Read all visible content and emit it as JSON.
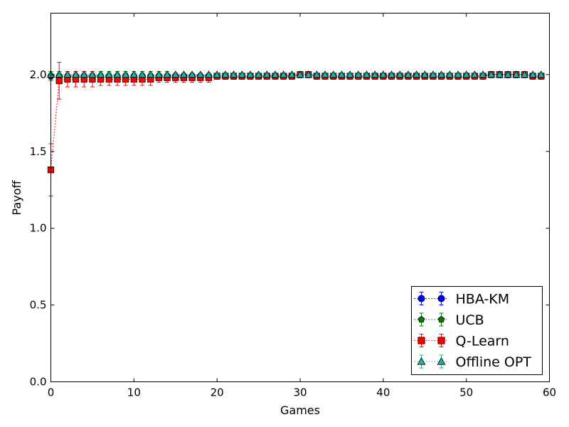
{
  "chart_data": {
    "type": "line",
    "xlabel": "Games",
    "ylabel": "Payoff",
    "xlim": [
      0,
      60
    ],
    "ylim": [
      0.0,
      2.4
    ],
    "xticks": [
      0,
      10,
      20,
      30,
      40,
      50,
      60
    ],
    "yticks": [
      0.0,
      0.5,
      1.0,
      1.5,
      2.0
    ],
    "xtick_labels": [
      "0",
      "10",
      "20",
      "30",
      "40",
      "50",
      "60"
    ],
    "ytick_labels": [
      "0.0",
      "0.5",
      "1.0",
      "1.5",
      "2.0"
    ],
    "grid": false,
    "legend_position": "lower-right",
    "series": [
      {
        "name": "HBA-KM",
        "color": "#0000ff",
        "marker": "circle",
        "x": [
          0,
          1,
          2,
          3,
          4,
          5,
          6,
          7,
          8,
          9,
          10,
          11,
          12,
          13,
          14,
          15,
          16,
          17,
          18,
          19,
          20,
          21,
          22,
          23,
          24,
          25,
          26,
          27,
          28,
          29,
          30,
          31,
          32,
          33,
          34,
          35,
          36,
          37,
          38,
          39,
          40,
          41,
          42,
          43,
          44,
          45,
          46,
          47,
          48,
          49,
          50,
          51,
          52,
          53,
          54,
          55,
          56,
          57,
          58,
          59
        ],
        "values": [
          1.99,
          1.99,
          1.99,
          1.99,
          1.99,
          1.99,
          1.99,
          1.99,
          1.99,
          1.99,
          1.99,
          1.99,
          1.99,
          1.99,
          1.99,
          1.99,
          1.99,
          1.99,
          1.99,
          1.99,
          1.99,
          1.99,
          1.99,
          1.99,
          1.99,
          1.99,
          1.99,
          1.99,
          1.99,
          1.99,
          2.0,
          2.0,
          1.99,
          1.99,
          1.99,
          1.99,
          1.99,
          1.99,
          1.99,
          1.99,
          1.99,
          1.99,
          1.99,
          1.99,
          1.99,
          1.99,
          1.99,
          1.99,
          1.99,
          1.99,
          1.99,
          1.99,
          1.99,
          2.0,
          2.0,
          2.0,
          2.0,
          2.0,
          1.99,
          1.99
        ],
        "errors": [
          0.02,
          0.02,
          0.02,
          0.02,
          0.02,
          0.02,
          0.02,
          0.02,
          0.02,
          0.02,
          0.02,
          0.02,
          0.02,
          0.02,
          0.02,
          0.02,
          0.02,
          0.02,
          0.02,
          0.02,
          0.02,
          0.02,
          0.02,
          0.02,
          0.02,
          0.02,
          0.02,
          0.02,
          0.02,
          0.02,
          0.02,
          0.02,
          0.02,
          0.02,
          0.02,
          0.02,
          0.02,
          0.02,
          0.02,
          0.02,
          0.02,
          0.02,
          0.02,
          0.02,
          0.02,
          0.02,
          0.02,
          0.02,
          0.02,
          0.02,
          0.02,
          0.02,
          0.02,
          0.02,
          0.02,
          0.02,
          0.02,
          0.02,
          0.02,
          0.02
        ]
      },
      {
        "name": "UCB",
        "color": "#008000",
        "marker": "pentagon",
        "x": [
          0,
          1,
          2,
          3,
          4,
          5,
          6,
          7,
          8,
          9,
          10,
          11,
          12,
          13,
          14,
          15,
          16,
          17,
          18,
          19,
          20,
          21,
          22,
          23,
          24,
          25,
          26,
          27,
          28,
          29,
          30,
          31,
          32,
          33,
          34,
          35,
          36,
          37,
          38,
          39,
          40,
          41,
          42,
          43,
          44,
          45,
          46,
          47,
          48,
          49,
          50,
          51,
          52,
          53,
          54,
          55,
          56,
          57,
          58,
          59
        ],
        "values": [
          1.99,
          1.99,
          1.99,
          1.99,
          1.99,
          1.99,
          1.99,
          1.99,
          1.99,
          1.99,
          1.99,
          1.99,
          1.99,
          1.99,
          1.99,
          1.99,
          1.99,
          1.99,
          1.99,
          1.99,
          1.99,
          1.99,
          1.99,
          1.99,
          1.99,
          1.99,
          1.99,
          1.99,
          1.99,
          1.99,
          2.0,
          2.0,
          1.99,
          1.99,
          1.99,
          1.99,
          1.99,
          1.99,
          1.99,
          1.99,
          1.99,
          1.99,
          1.99,
          1.99,
          1.99,
          1.99,
          1.99,
          1.99,
          1.99,
          1.99,
          1.99,
          1.99,
          1.99,
          2.0,
          2.0,
          2.0,
          2.0,
          2.0,
          1.99,
          1.99
        ],
        "errors": [
          0.03,
          0.03,
          0.03,
          0.03,
          0.03,
          0.03,
          0.03,
          0.03,
          0.03,
          0.03,
          0.03,
          0.03,
          0.03,
          0.03,
          0.03,
          0.02,
          0.02,
          0.02,
          0.02,
          0.02,
          0.02,
          0.02,
          0.02,
          0.02,
          0.02,
          0.02,
          0.02,
          0.02,
          0.02,
          0.02,
          0.02,
          0.02,
          0.02,
          0.02,
          0.02,
          0.02,
          0.02,
          0.02,
          0.02,
          0.02,
          0.02,
          0.02,
          0.02,
          0.02,
          0.02,
          0.02,
          0.02,
          0.02,
          0.02,
          0.02,
          0.02,
          0.02,
          0.02,
          0.02,
          0.02,
          0.02,
          0.02,
          0.02,
          0.02,
          0.02
        ]
      },
      {
        "name": "Q-Learn",
        "color": "#ff0000",
        "marker": "square",
        "x": [
          0,
          1,
          2,
          3,
          4,
          5,
          6,
          7,
          8,
          9,
          10,
          11,
          12,
          13,
          14,
          15,
          16,
          17,
          18,
          19,
          20,
          21,
          22,
          23,
          24,
          25,
          26,
          27,
          28,
          29,
          30,
          31,
          32,
          33,
          34,
          35,
          36,
          37,
          38,
          39,
          40,
          41,
          42,
          43,
          44,
          45,
          46,
          47,
          48,
          49,
          50,
          51,
          52,
          53,
          54,
          55,
          56,
          57,
          58,
          59
        ],
        "values": [
          1.38,
          1.96,
          1.97,
          1.97,
          1.97,
          1.97,
          1.97,
          1.97,
          1.97,
          1.97,
          1.97,
          1.97,
          1.97,
          1.98,
          1.98,
          1.98,
          1.98,
          1.98,
          1.98,
          1.98,
          1.99,
          1.99,
          1.99,
          1.99,
          1.99,
          1.99,
          1.99,
          1.99,
          1.99,
          1.99,
          2.0,
          2.0,
          1.99,
          1.99,
          1.99,
          1.99,
          1.99,
          1.99,
          1.99,
          1.99,
          1.99,
          1.99,
          1.99,
          1.99,
          1.99,
          1.99,
          1.99,
          1.99,
          1.99,
          1.99,
          1.99,
          1.99,
          1.99,
          2.0,
          2.0,
          2.0,
          2.0,
          2.0,
          1.99,
          1.99
        ],
        "errors": [
          0.17,
          0.12,
          0.05,
          0.05,
          0.05,
          0.05,
          0.04,
          0.04,
          0.04,
          0.04,
          0.04,
          0.04,
          0.04,
          0.03,
          0.03,
          0.03,
          0.03,
          0.03,
          0.03,
          0.03,
          0.02,
          0.02,
          0.02,
          0.02,
          0.02,
          0.02,
          0.02,
          0.02,
          0.02,
          0.02,
          0.02,
          0.02,
          0.02,
          0.02,
          0.02,
          0.02,
          0.02,
          0.02,
          0.02,
          0.02,
          0.02,
          0.02,
          0.02,
          0.02,
          0.02,
          0.02,
          0.02,
          0.02,
          0.02,
          0.02,
          0.02,
          0.02,
          0.02,
          0.02,
          0.02,
          0.02,
          0.02,
          0.02,
          0.02,
          0.02
        ]
      },
      {
        "name": "Offline OPT",
        "color": "#20b2aa",
        "marker": "triangle",
        "x": [
          0,
          1,
          2,
          3,
          4,
          5,
          6,
          7,
          8,
          9,
          10,
          11,
          12,
          13,
          14,
          15,
          16,
          17,
          18,
          19,
          20,
          21,
          22,
          23,
          24,
          25,
          26,
          27,
          28,
          29,
          30,
          31,
          32,
          33,
          34,
          35,
          36,
          37,
          38,
          39,
          40,
          41,
          42,
          43,
          44,
          45,
          46,
          47,
          48,
          49,
          50,
          51,
          52,
          53,
          54,
          55,
          56,
          57,
          58,
          59
        ],
        "values": [
          2.0,
          2.0,
          2.0,
          2.0,
          2.0,
          2.0,
          2.0,
          2.0,
          2.0,
          2.0,
          2.0,
          2.0,
          2.0,
          2.0,
          2.0,
          2.0,
          2.0,
          2.0,
          2.0,
          2.0,
          2.0,
          2.0,
          2.0,
          2.0,
          2.0,
          2.0,
          2.0,
          2.0,
          2.0,
          2.0,
          2.0,
          2.0,
          2.0,
          2.0,
          2.0,
          2.0,
          2.0,
          2.0,
          2.0,
          2.0,
          2.0,
          2.0,
          2.0,
          2.0,
          2.0,
          2.0,
          2.0,
          2.0,
          2.0,
          2.0,
          2.0,
          2.0,
          2.0,
          2.0,
          2.0,
          2.0,
          2.0,
          2.0,
          2.0,
          2.0
        ],
        "errors": [
          0.01,
          0.01,
          0.01,
          0.01,
          0.01,
          0.01,
          0.01,
          0.01,
          0.01,
          0.01,
          0.01,
          0.01,
          0.01,
          0.01,
          0.01,
          0.01,
          0.01,
          0.01,
          0.01,
          0.01,
          0.01,
          0.01,
          0.01,
          0.01,
          0.01,
          0.01,
          0.01,
          0.01,
          0.01,
          0.01,
          0.01,
          0.01,
          0.01,
          0.01,
          0.01,
          0.01,
          0.01,
          0.01,
          0.01,
          0.01,
          0.01,
          0.01,
          0.01,
          0.01,
          0.01,
          0.01,
          0.01,
          0.01,
          0.01,
          0.01,
          0.01,
          0.01,
          0.01,
          0.01,
          0.01,
          0.01,
          0.01,
          0.01,
          0.01,
          0.01
        ]
      }
    ]
  }
}
